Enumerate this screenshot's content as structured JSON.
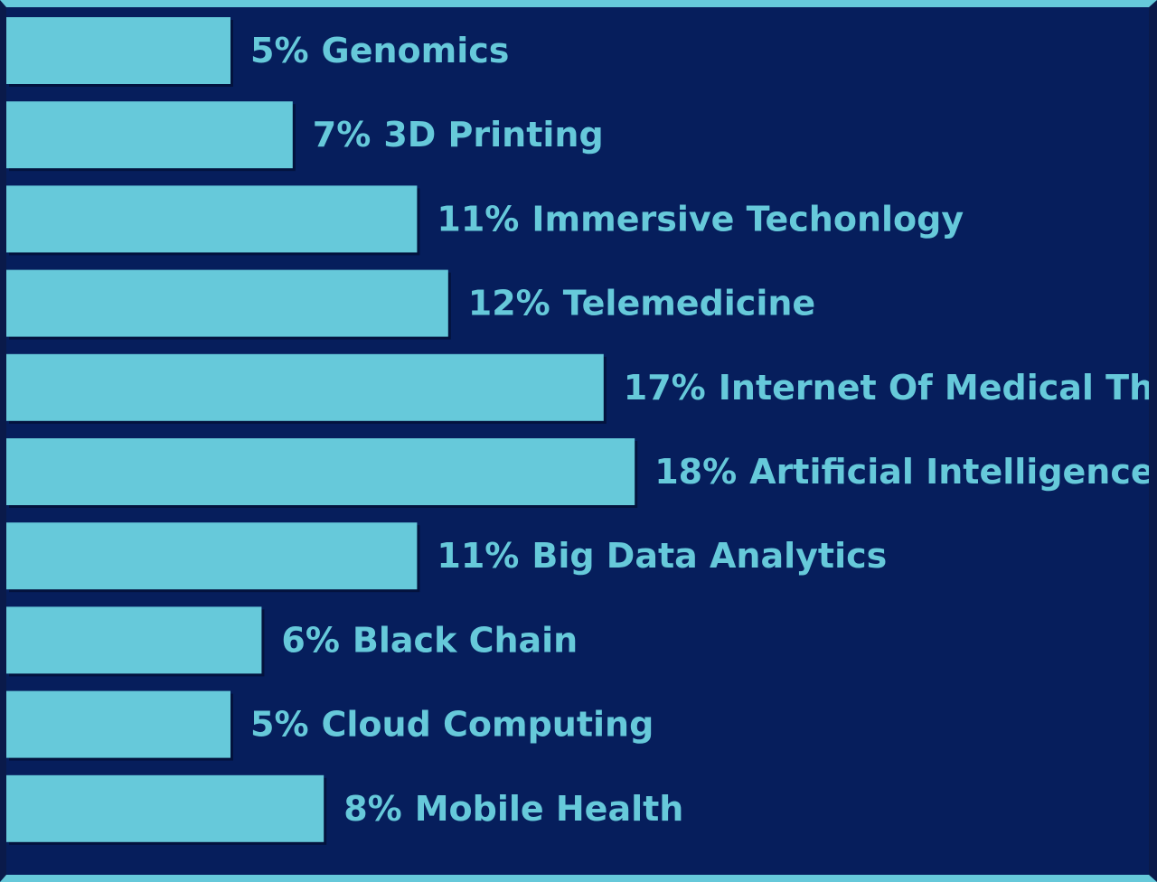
{
  "chart_data": {
    "type": "bar",
    "orientation": "horizontal",
    "categories": [
      "Genomics",
      "3D Printing",
      "Immersive Techonlogy",
      "Telemedicine",
      "Internet Of Medical Things",
      "Artificial Intelligence",
      "Big Data Analytics",
      "Black Chain",
      "Cloud Computing",
      "Mobile Health"
    ],
    "values": [
      5,
      7,
      11,
      12,
      17,
      18,
      11,
      6,
      5,
      8
    ],
    "value_labels": [
      "5%",
      "7%",
      "11%",
      "12%",
      "17%",
      "18%",
      "11%",
      "6%",
      "5%",
      "8%"
    ],
    "unit": "%",
    "grid": false,
    "legend": "none",
    "colors": {
      "bar": "#66c9da",
      "background": "#061e5c",
      "label": "#66c9da"
    }
  }
}
